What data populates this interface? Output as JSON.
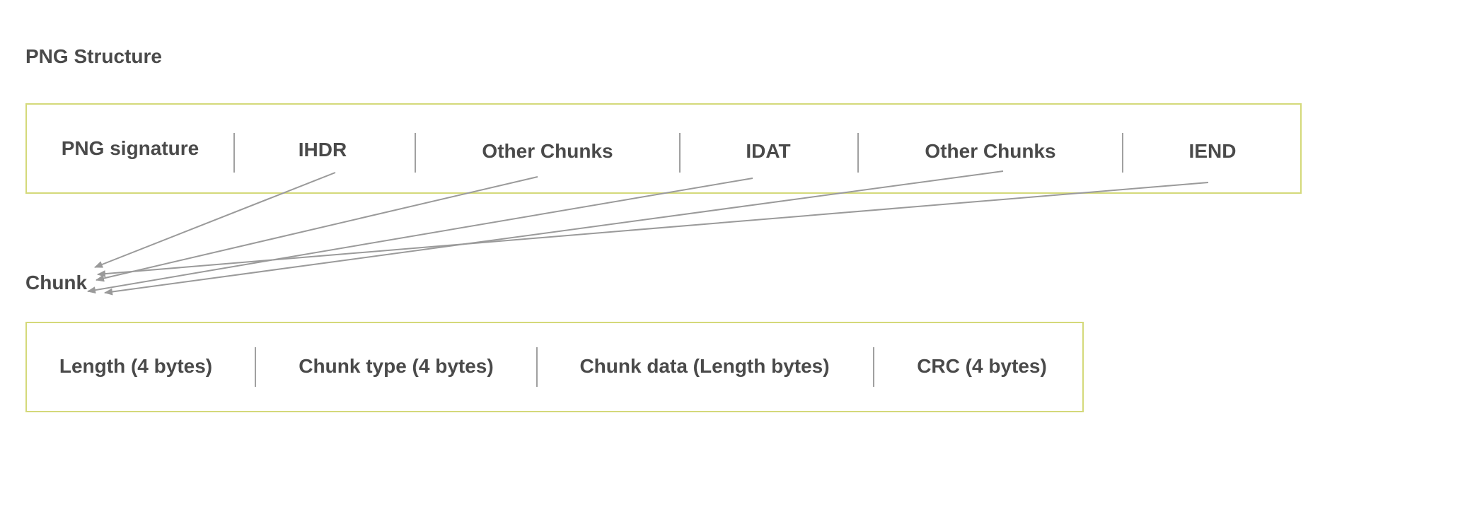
{
  "structure": {
    "title": "PNG Structure",
    "fields": [
      "PNG signature",
      "IHDR",
      "Other Chunks",
      "IDAT",
      "Other Chunks",
      "IEND"
    ]
  },
  "chunk": {
    "title": "Chunk",
    "fields": [
      "Length (4 bytes)",
      "Chunk type (4 bytes)",
      "Chunk data (Length bytes)",
      "CRC (4 bytes)"
    ]
  },
  "colors": {
    "frame_border": "#d4d97a",
    "arrow": "#9a9a9a",
    "text": "#4a4a4a"
  }
}
